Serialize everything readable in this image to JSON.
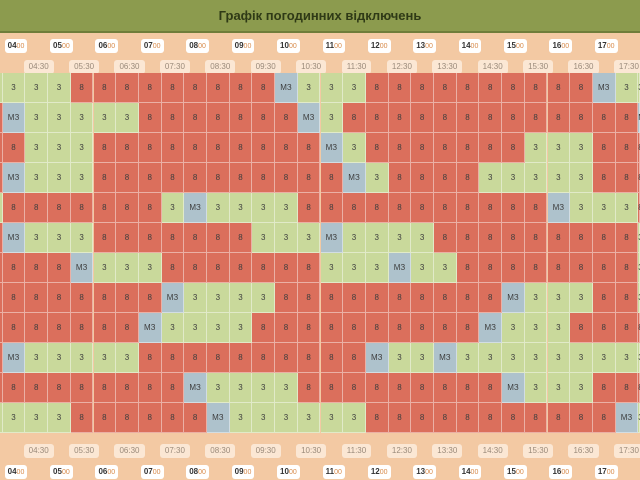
{
  "title": "Графік погодинних відключень",
  "colors": {
    "on": "#c9d99b",
    "off": "#db6f5c",
    "maybe": "#aec2cc",
    "header": "#8c9b4e",
    "bg": "#f3c9a3"
  },
  "status_labels": {
    "on": "3",
    "off": "8",
    "maybe": "МЗ"
  },
  "hours": [
    "04",
    "05",
    "06",
    "07",
    "08",
    "09",
    "10",
    "11",
    "12",
    "13",
    "14",
    "15",
    "16",
    "17"
  ],
  "hour_minutes": "00",
  "half_hours": [
    "04:30",
    "05:30",
    "06:30",
    "07:30",
    "08:30",
    "09:30",
    "10:30",
    "11:30",
    "12:30",
    "13:30",
    "14:30",
    "15:30",
    "16:30",
    "17:30"
  ],
  "rows": [
    "3333888888888M3338888888888M33388",
    "8M333338888888M38888888888888M3388",
    "883338888888888M38888888333888M333",
    "8M33388888888888M388883333388888M3",
    "388888883M333388888888888M3338888",
    "8M3338888888333M33338888888883333",
    "8888M3338888888333M33888888883338",
    "88888888M33338888888888M3338833338",
    "8888888M33338888888888M3338888888",
    "8M333338888888888M33M33333333333",
    "888888888M3333888888888M3338888888",
    "3333888888M33333388888888888M3888"
  ]
}
